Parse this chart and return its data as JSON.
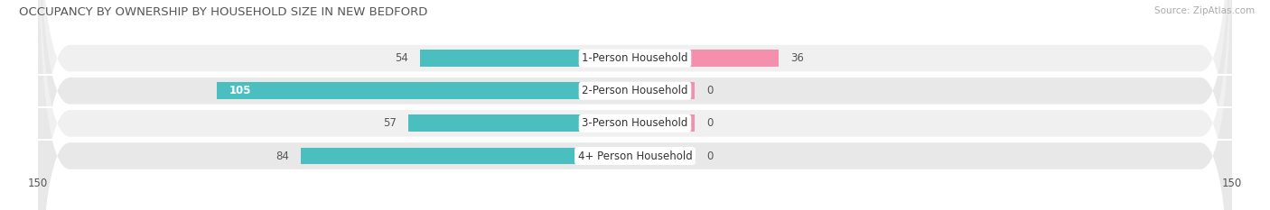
{
  "title": "OCCUPANCY BY OWNERSHIP BY HOUSEHOLD SIZE IN NEW BEDFORD",
  "source": "Source: ZipAtlas.com",
  "categories": [
    "1-Person Household",
    "2-Person Household",
    "3-Person Household",
    "4+ Person Household"
  ],
  "owner_values": [
    54,
    105,
    57,
    84
  ],
  "renter_values": [
    36,
    0,
    0,
    0
  ],
  "renter_display_min": 15,
  "owner_color": "#4BBFBF",
  "renter_color": "#F48FAD",
  "row_bg_colors": [
    "#F0F0F0",
    "#E8E8E8",
    "#F0F0F0",
    "#E8E8E8"
  ],
  "row_pill_color": "#E0E0E0",
  "xlim": 150,
  "bar_height": 0.52,
  "label_fontsize": 8.5,
  "title_fontsize": 9.5,
  "axis_label_fontsize": 8.5,
  "legend_fontsize": 8.5
}
